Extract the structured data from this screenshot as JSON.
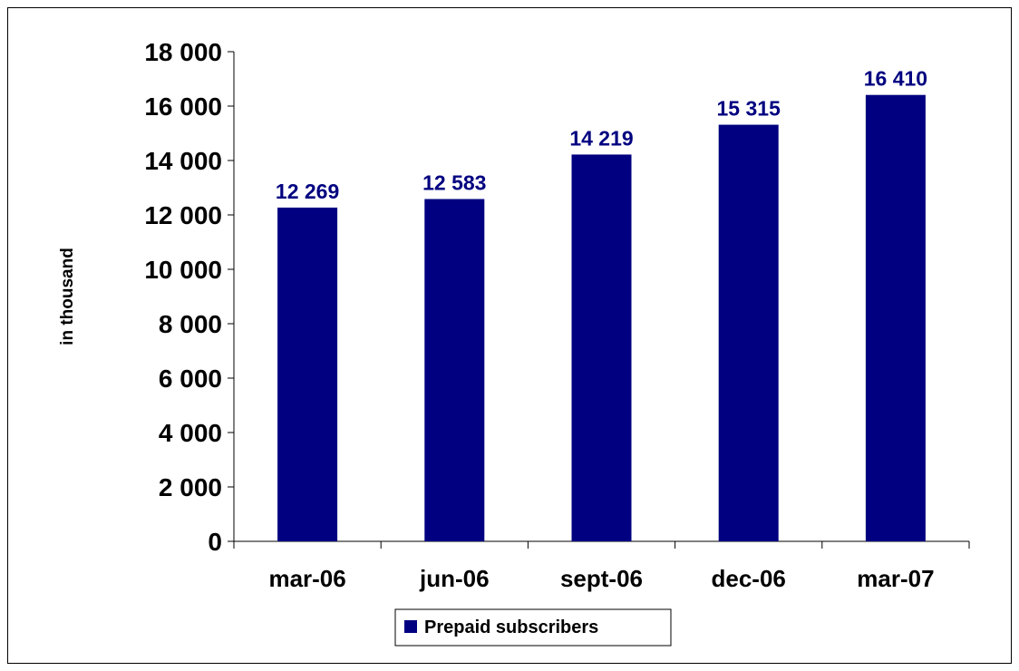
{
  "chart_data": {
    "type": "bar",
    "categories": [
      "mar-06",
      "jun-06",
      "sept-06",
      "dec-06",
      "mar-07"
    ],
    "series": [
      {
        "name": "Prepaid subscribers",
        "values": [
          12269,
          12583,
          14219,
          15315,
          16410
        ]
      }
    ],
    "data_labels": [
      "12 269",
      "12 583",
      "14 219",
      "15 315",
      "16 410"
    ],
    "y_ticks": [
      0,
      2000,
      4000,
      6000,
      8000,
      10000,
      12000,
      14000,
      16000,
      18000
    ],
    "y_tick_labels": [
      "0",
      "2 000",
      "4 000",
      "6 000",
      "8 000",
      "10 000",
      "12 000",
      "14 000",
      "16 000",
      "18 000"
    ],
    "ylim": [
      0,
      18000
    ],
    "ylabel": "in thousand",
    "xlabel": "",
    "title": "",
    "grid": false,
    "legend": {
      "position": "bottom",
      "entries": [
        "Prepaid subscribers"
      ]
    },
    "colors": {
      "bar": "#000080",
      "data_label": "#000080",
      "axis": "#000000"
    }
  }
}
